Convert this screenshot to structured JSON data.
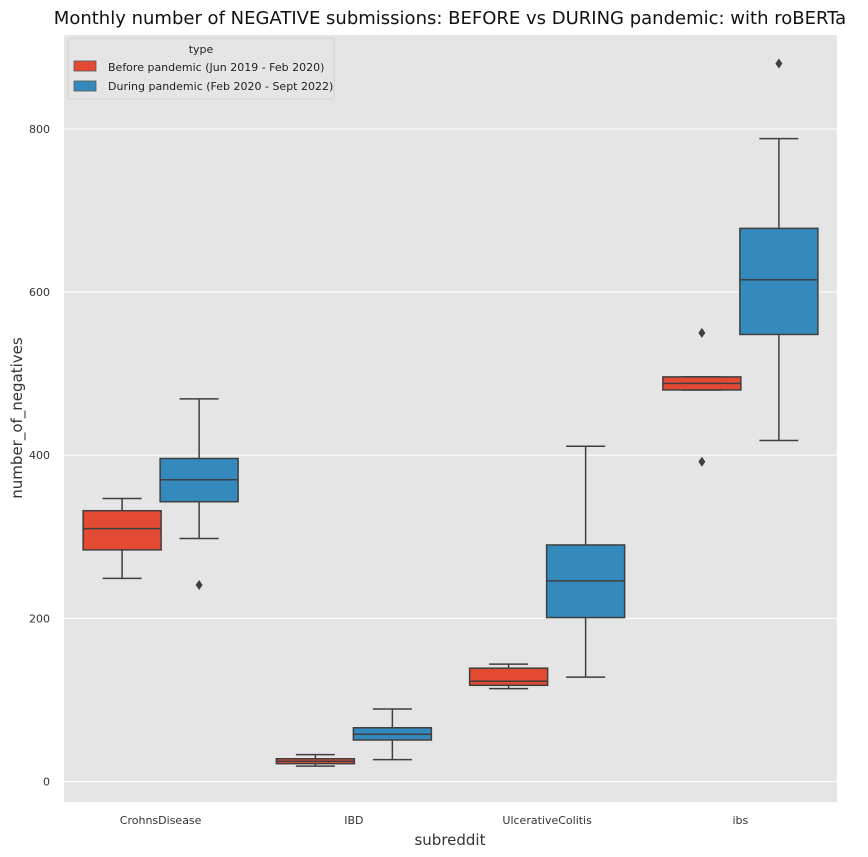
{
  "chart_data": {
    "type": "boxplot",
    "title": "Monthly number of NEGATIVE submissions: BEFORE vs DURING pandemic: with roBERTa",
    "xlabel": "subreddit",
    "ylabel": "number_of_negatives",
    "categories": [
      "CrohnsDisease",
      "IBD",
      "UlcerativeColitis",
      "ibs"
    ],
    "ylim": [
      -25,
      915
    ],
    "yticks": [
      0,
      200,
      400,
      600,
      800
    ],
    "grid": true,
    "legend": {
      "title": "type",
      "placement": "top-left"
    },
    "series": [
      {
        "name": "Before pandemic (Jun 2019 - Feb 2020)",
        "color": "#E24A33",
        "boxes": [
          {
            "whislo": 249,
            "q1": 284,
            "med": 310,
            "q3": 332,
            "whishi": 347,
            "fliers": []
          },
          {
            "whislo": 19,
            "q1": 22,
            "med": 25,
            "q3": 28,
            "whishi": 33,
            "fliers": []
          },
          {
            "whislo": 114,
            "q1": 118,
            "med": 123,
            "q3": 139,
            "whishi": 144,
            "fliers": []
          },
          {
            "whislo": 480,
            "q1": 480,
            "med": 488,
            "q3": 496,
            "whishi": 496,
            "fliers": [
              550,
              392
            ]
          }
        ]
      },
      {
        "name": "During pandemic (Feb 2020 - Sept 2022)",
        "color": "#348ABD",
        "boxes": [
          {
            "whislo": 298,
            "q1": 343,
            "med": 370,
            "q3": 396,
            "whishi": 469,
            "fliers": [
              241
            ]
          },
          {
            "whislo": 27,
            "q1": 51,
            "med": 58,
            "q3": 66,
            "whishi": 89,
            "fliers": []
          },
          {
            "whislo": 128,
            "q1": 201,
            "med": 246,
            "q3": 290,
            "whishi": 411,
            "fliers": []
          },
          {
            "whislo": 418,
            "q1": 548,
            "med": 615,
            "q3": 678,
            "whishi": 788,
            "fliers": [
              880
            ]
          }
        ]
      }
    ]
  }
}
